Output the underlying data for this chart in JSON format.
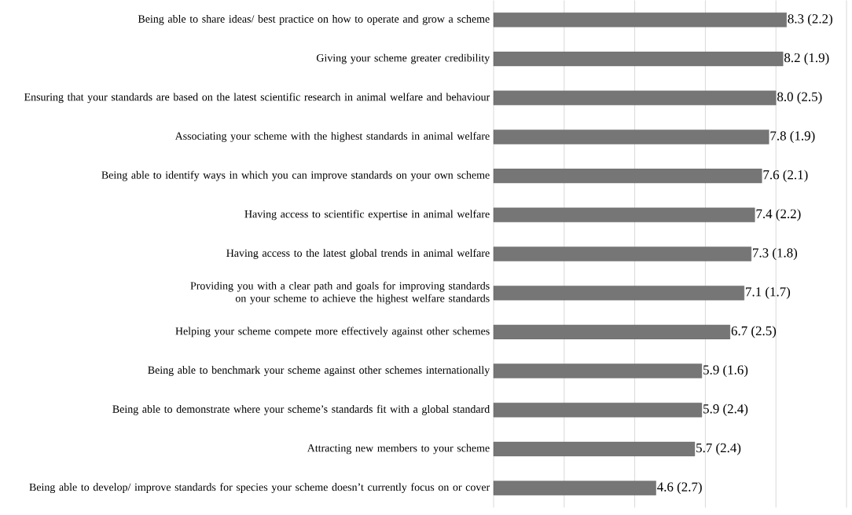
{
  "chart_data": {
    "type": "bar",
    "orientation": "horizontal",
    "categories": [
      "Being able to share ideas/ best practice on how to operate and grow a scheme",
      "Giving your scheme greater credibility",
      "Ensuring that your standards are based on the latest scientific research in animal welfare and behaviour",
      "Associating your scheme with the highest standards in animal welfare",
      "Being able to identify ways in which you can improve standards on your own scheme",
      "Having access to scientific expertise in animal welfare",
      "Having access to the latest global trends in animal welfare",
      "Providing you with a clear path and goals for improving standards on your scheme to achieve the highest welfare standards",
      "Helping your scheme compete more effectively against other schemes",
      "Being able to benchmark your scheme against other schemes internationally",
      "Being able to demonstrate where your scheme’s standards fit with a global standard",
      "Attracting new members to your scheme",
      "Being able to develop/ improve  standards for species your scheme doesn’t currently focus on or cover"
    ],
    "values": [
      8.3,
      8.2,
      8.0,
      7.8,
      7.6,
      7.4,
      7.3,
      7.1,
      6.7,
      5.9,
      5.9,
      5.7,
      4.6
    ],
    "value_labels": [
      "8.3 (2.2)",
      "8.2 (1.9)",
      "8.0 (2.5)",
      "7.8 (1.9)",
      "7.6 (2.1)",
      "7.4 (2.2)",
      "7.3 (1.8)",
      "7.1 (1.7)",
      "6.7 (2.5)",
      "5.9 (1.6)",
      "5.9 (2.4)",
      "5.7 (2.4)",
      "4.6 (2.7)"
    ],
    "color": "#767676",
    "xlim": [
      0,
      10
    ],
    "xticks": [
      {
        "value": 0,
        "label": null
      },
      {
        "value": 2,
        "label": null
      },
      {
        "value": 4,
        "label": null
      },
      {
        "value": 6,
        "label": null
      },
      {
        "value": 8,
        "label": null
      },
      {
        "value": 10,
        "label": null
      }
    ],
    "grid": "x",
    "tick_labels": "y"
  }
}
